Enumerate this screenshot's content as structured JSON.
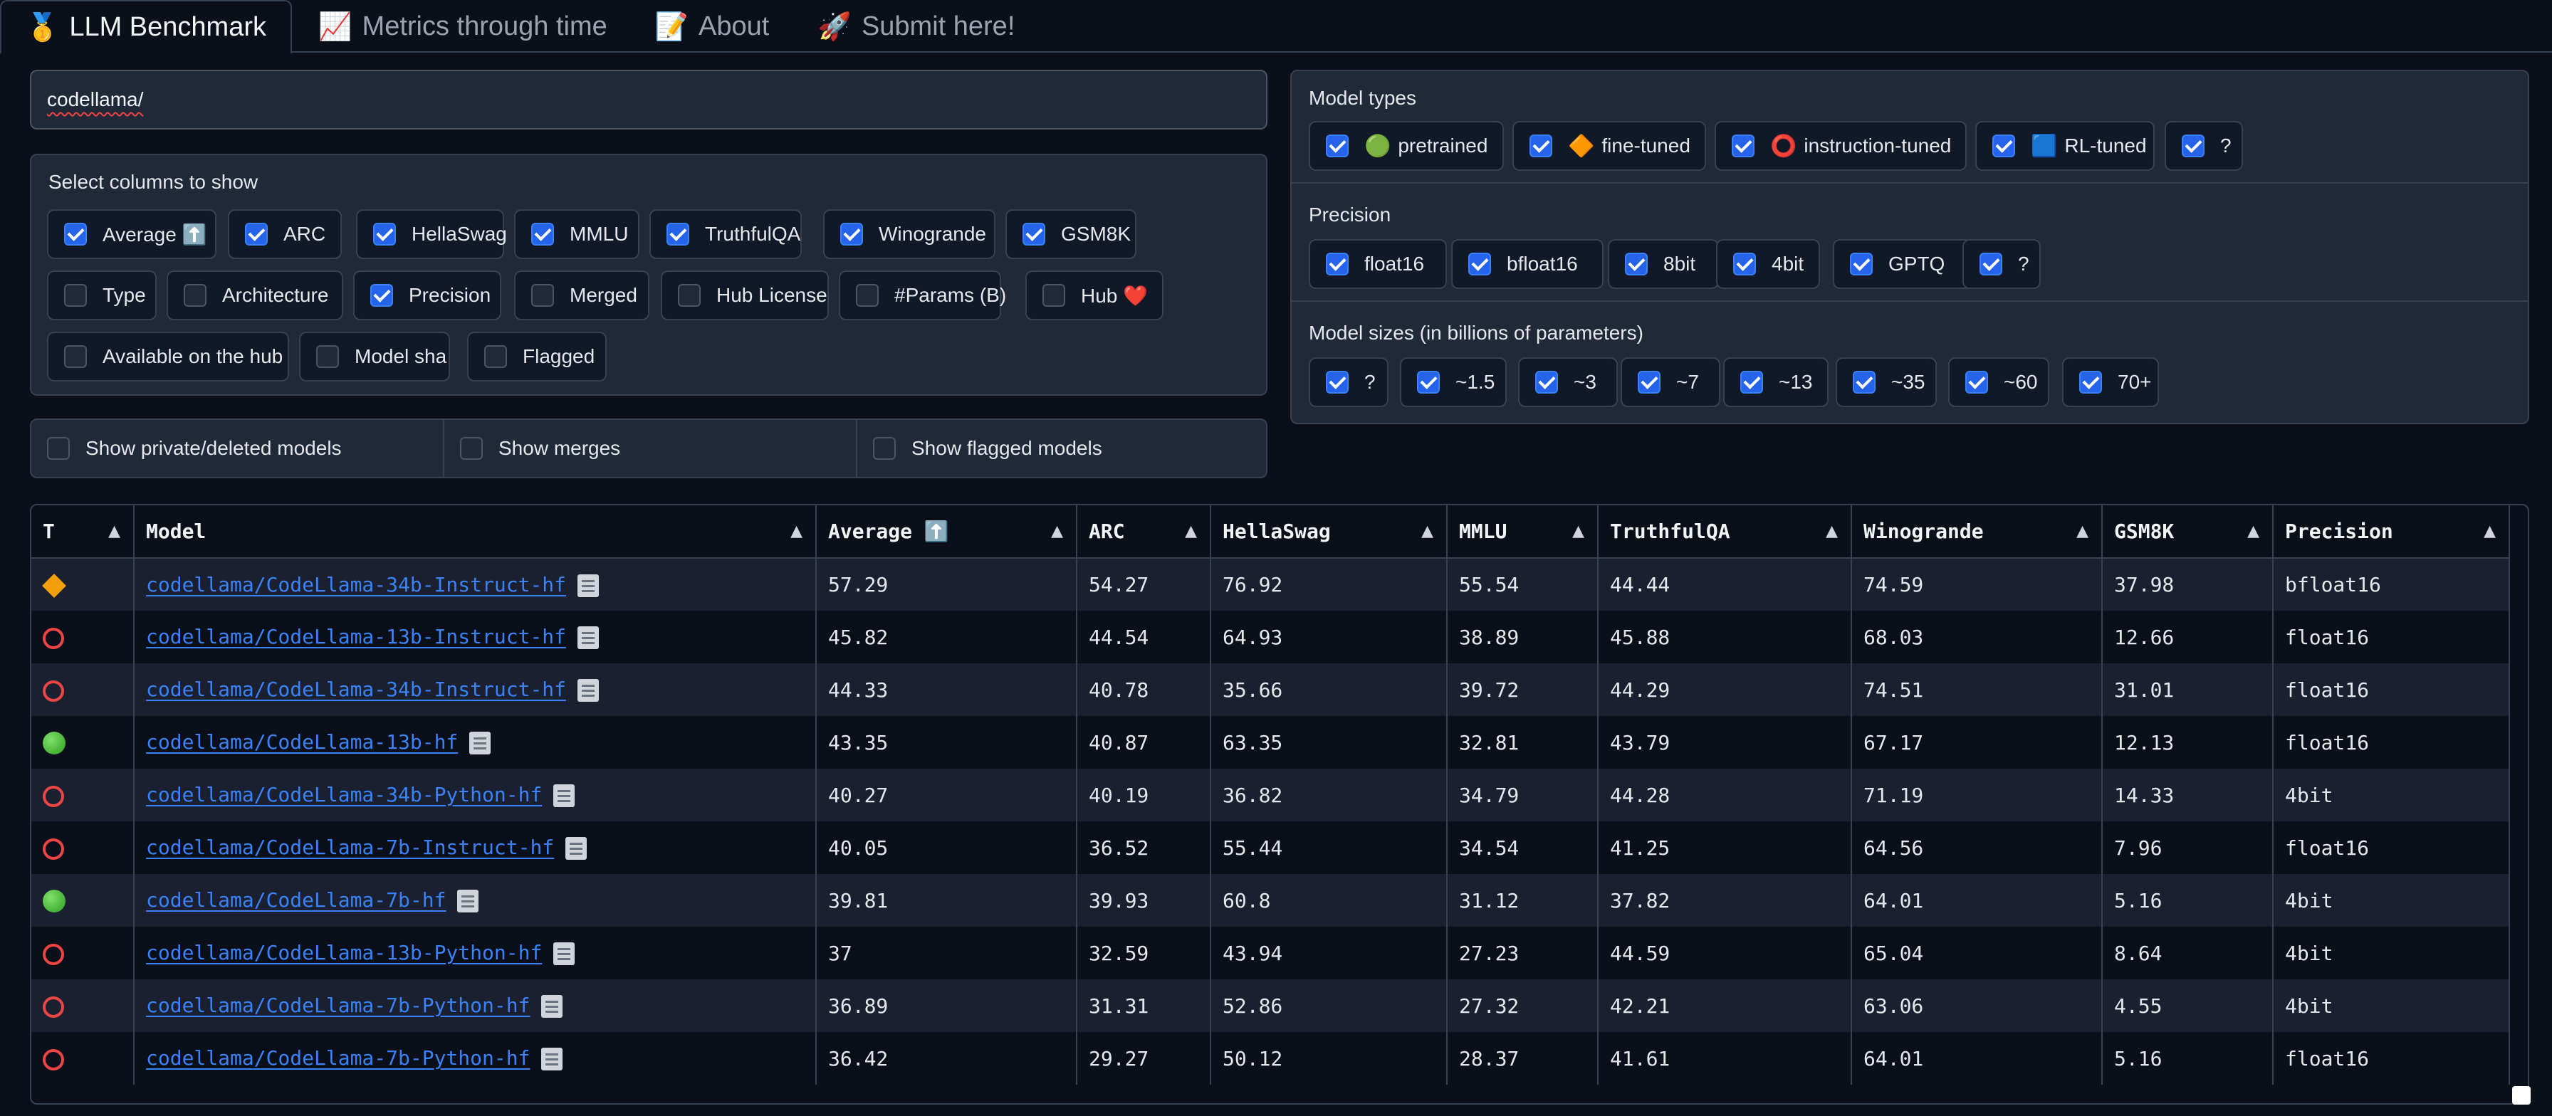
{
  "tabs": [
    {
      "emoji": "🥇",
      "label": "LLM Benchmark"
    },
    {
      "emoji": "📈",
      "label": "Metrics through time"
    },
    {
      "emoji": "📝",
      "label": "About"
    },
    {
      "emoji": "🚀",
      "label": "Submit here!"
    }
  ],
  "search": {
    "value": "codellama/"
  },
  "columns_panel": {
    "title": "Select columns to show",
    "items": [
      {
        "label": "Average ⬆️",
        "checked": true
      },
      {
        "label": "ARC",
        "checked": true
      },
      {
        "label": "HellaSwag",
        "checked": true
      },
      {
        "label": "MMLU",
        "checked": true
      },
      {
        "label": "TruthfulQA",
        "checked": true
      },
      {
        "label": "Winogrande",
        "checked": true
      },
      {
        "label": "GSM8K",
        "checked": true
      },
      {
        "label": "Type",
        "checked": false
      },
      {
        "label": "Architecture",
        "checked": false
      },
      {
        "label": "Precision",
        "checked": true
      },
      {
        "label": "Merged",
        "checked": false
      },
      {
        "label": "Hub License",
        "checked": false
      },
      {
        "label": "#Params (B)",
        "checked": false
      },
      {
        "label": "Hub ❤️",
        "checked": false
      },
      {
        "label": "Available on the hub",
        "checked": false
      },
      {
        "label": "Model sha",
        "checked": false
      },
      {
        "label": "Flagged",
        "checked": false
      }
    ]
  },
  "filters": [
    {
      "label": "Show private/deleted models",
      "checked": false
    },
    {
      "label": "Show merges",
      "checked": false
    },
    {
      "label": "Show flagged models",
      "checked": false
    }
  ],
  "model_types": {
    "title": "Model types",
    "items": [
      {
        "emoji": "🟢",
        "label": "pretrained",
        "checked": true
      },
      {
        "emoji": "🔶",
        "label": "fine-tuned",
        "checked": true
      },
      {
        "emoji": "⭕",
        "label": "instruction-tuned",
        "checked": true
      },
      {
        "emoji": "🟦",
        "label": "RL-tuned",
        "checked": true
      },
      {
        "emoji": "",
        "label": "?",
        "checked": true
      }
    ]
  },
  "precision": {
    "title": "Precision",
    "items": [
      {
        "label": "float16",
        "checked": true
      },
      {
        "label": "bfloat16",
        "checked": true
      },
      {
        "label": "8bit",
        "checked": true
      },
      {
        "label": "4bit",
        "checked": true
      },
      {
        "label": "GPTQ",
        "checked": true
      },
      {
        "label": "?",
        "checked": true
      }
    ]
  },
  "model_sizes": {
    "title": "Model sizes (in billions of parameters)",
    "items": [
      {
        "label": "?",
        "checked": true
      },
      {
        "label": "~1.5",
        "checked": true
      },
      {
        "label": "~3",
        "checked": true
      },
      {
        "label": "~7",
        "checked": true
      },
      {
        "label": "~13",
        "checked": true
      },
      {
        "label": "~35",
        "checked": true
      },
      {
        "label": "~60",
        "checked": true
      },
      {
        "label": "70+",
        "checked": true
      }
    ]
  },
  "table": {
    "columns": [
      "T",
      "Model",
      "Average ⬆️",
      "ARC",
      "HellaSwag",
      "MMLU",
      "TruthfulQA",
      "Winogrande",
      "GSM8K",
      "Precision"
    ],
    "sort_arrow": "▲",
    "rows": [
      {
        "type": "fine-tuned",
        "model": "codellama/CodeLlama-34b-Instruct-hf",
        "average": "57.29",
        "arc": "54.27",
        "hellaswag": "76.92",
        "mmlu": "55.54",
        "truthfulqa": "44.44",
        "winogrande": "74.59",
        "gsm8k": "37.98",
        "precision": "bfloat16"
      },
      {
        "type": "instruction-tuned",
        "model": "codellama/CodeLlama-13b-Instruct-hf",
        "average": "45.82",
        "arc": "44.54",
        "hellaswag": "64.93",
        "mmlu": "38.89",
        "truthfulqa": "45.88",
        "winogrande": "68.03",
        "gsm8k": "12.66",
        "precision": "float16"
      },
      {
        "type": "instruction-tuned",
        "model": "codellama/CodeLlama-34b-Instruct-hf",
        "average": "44.33",
        "arc": "40.78",
        "hellaswag": "35.66",
        "mmlu": "39.72",
        "truthfulqa": "44.29",
        "winogrande": "74.51",
        "gsm8k": "31.01",
        "precision": "float16"
      },
      {
        "type": "pretrained",
        "model": "codellama/CodeLlama-13b-hf",
        "average": "43.35",
        "arc": "40.87",
        "hellaswag": "63.35",
        "mmlu": "32.81",
        "truthfulqa": "43.79",
        "winogrande": "67.17",
        "gsm8k": "12.13",
        "precision": "float16"
      },
      {
        "type": "instruction-tuned",
        "model": "codellama/CodeLlama-34b-Python-hf",
        "average": "40.27",
        "arc": "40.19",
        "hellaswag": "36.82",
        "mmlu": "34.79",
        "truthfulqa": "44.28",
        "winogrande": "71.19",
        "gsm8k": "14.33",
        "precision": "4bit"
      },
      {
        "type": "instruction-tuned",
        "model": "codellama/CodeLlama-7b-Instruct-hf",
        "average": "40.05",
        "arc": "36.52",
        "hellaswag": "55.44",
        "mmlu": "34.54",
        "truthfulqa": "41.25",
        "winogrande": "64.56",
        "gsm8k": "7.96",
        "precision": "float16"
      },
      {
        "type": "pretrained",
        "model": "codellama/CodeLlama-7b-hf",
        "average": "39.81",
        "arc": "39.93",
        "hellaswag": "60.8",
        "mmlu": "31.12",
        "truthfulqa": "37.82",
        "winogrande": "64.01",
        "gsm8k": "5.16",
        "precision": "4bit"
      },
      {
        "type": "instruction-tuned",
        "model": "codellama/CodeLlama-13b-Python-hf",
        "average": "37",
        "arc": "32.59",
        "hellaswag": "43.94",
        "mmlu": "27.23",
        "truthfulqa": "44.59",
        "winogrande": "65.04",
        "gsm8k": "8.64",
        "precision": "4bit"
      },
      {
        "type": "instruction-tuned",
        "model": "codellama/CodeLlama-7b-Python-hf",
        "average": "36.89",
        "arc": "31.31",
        "hellaswag": "52.86",
        "mmlu": "27.32",
        "truthfulqa": "42.21",
        "winogrande": "63.06",
        "gsm8k": "4.55",
        "precision": "4bit"
      },
      {
        "type": "instruction-tuned",
        "model": "codellama/CodeLlama-7b-Python-hf",
        "average": "36.42",
        "arc": "29.27",
        "hellaswag": "50.12",
        "mmlu": "28.37",
        "truthfulqa": "41.61",
        "winogrande": "64.01",
        "gsm8k": "5.16",
        "precision": "float16"
      }
    ]
  }
}
